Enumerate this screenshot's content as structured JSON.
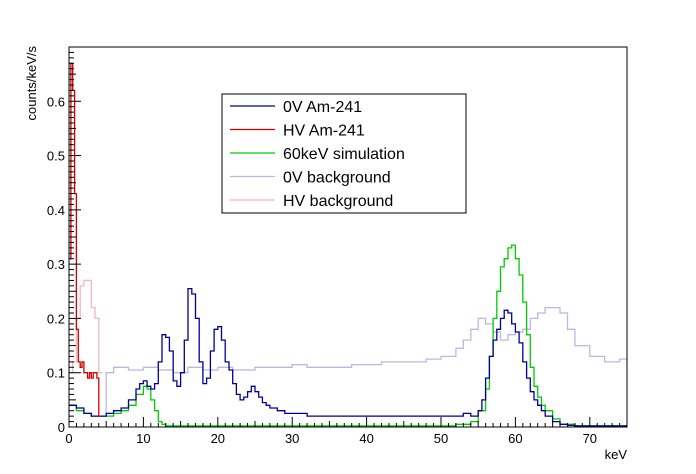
{
  "chart_data": {
    "type": "line",
    "title": "",
    "xlabel": "keV",
    "ylabel": "counts/keV/s",
    "xlim": [
      0,
      75
    ],
    "ylim": [
      0,
      0.7
    ],
    "grid": false,
    "legend_position": "top-center",
    "x_ticks": [
      0,
      10,
      20,
      30,
      40,
      50,
      60,
      70
    ],
    "y_ticks": [
      0,
      0.1,
      0.2,
      0.3,
      0.4,
      0.5,
      0.6
    ],
    "series": [
      {
        "name": "0V Am-241",
        "color": "#000099",
        "x": [
          0,
          1,
          2,
          3,
          4,
          5,
          6,
          7,
          8,
          9,
          9.5,
          10,
          10.5,
          11,
          11.5,
          12,
          12.5,
          13,
          13.5,
          14,
          14.5,
          15,
          15.5,
          16,
          16.5,
          17,
          17.5,
          18,
          18.5,
          19,
          19.5,
          20,
          20.5,
          21,
          21.5,
          22,
          22.5,
          23,
          23.5,
          24,
          24.5,
          25,
          25.5,
          26,
          26.5,
          27,
          28,
          29,
          30,
          32,
          34,
          36,
          38,
          40,
          42,
          44,
          46,
          48,
          50,
          52,
          53,
          54,
          55,
          55.5,
          56,
          56.5,
          57,
          57.5,
          58,
          58.5,
          59,
          59.5,
          60,
          60.5,
          61,
          61.5,
          62,
          62.5,
          63,
          63.5,
          64,
          65,
          66,
          67,
          68,
          70,
          72,
          75
        ],
        "values": [
          0.04,
          0.035,
          0.025,
          0.02,
          0.02,
          0.025,
          0.03,
          0.035,
          0.05,
          0.07,
          0.08,
          0.085,
          0.075,
          0.07,
          0.08,
          0.12,
          0.17,
          0.165,
          0.14,
          0.085,
          0.075,
          0.1,
          0.16,
          0.255,
          0.245,
          0.2,
          0.12,
          0.08,
          0.09,
          0.14,
          0.18,
          0.185,
          0.16,
          0.12,
          0.105,
          0.08,
          0.06,
          0.05,
          0.055,
          0.065,
          0.075,
          0.065,
          0.055,
          0.045,
          0.04,
          0.035,
          0.03,
          0.025,
          0.025,
          0.02,
          0.02,
          0.02,
          0.02,
          0.02,
          0.02,
          0.02,
          0.02,
          0.02,
          0.02,
          0.02,
          0.025,
          0.02,
          0.03,
          0.05,
          0.09,
          0.13,
          0.16,
          0.18,
          0.2,
          0.215,
          0.21,
          0.19,
          0.175,
          0.155,
          0.12,
          0.09,
          0.065,
          0.05,
          0.04,
          0.03,
          0.02,
          0.01,
          0.005,
          0.003,
          0.002,
          0.002,
          0.002,
          0.002
        ]
      },
      {
        "name": "HV Am-241",
        "color": "#cc0000",
        "x": [
          0,
          0.25,
          0.5,
          0.75,
          1,
          1.25,
          1.5,
          1.75,
          2,
          2.25,
          2.5,
          2.75,
          3,
          3.25,
          3.5,
          3.75,
          4
        ],
        "values": [
          0.31,
          0.67,
          0.62,
          0.43,
          0.18,
          0.12,
          0.11,
          0.12,
          0.1,
          0.1,
          0.09,
          0.1,
          0.09,
          0.1,
          0.1,
          0.09,
          0.02
        ]
      },
      {
        "name": "60keV simulation",
        "color": "#00cc00",
        "x": [
          0,
          1,
          2,
          3,
          4,
          5,
          6,
          7,
          8,
          9,
          10,
          10.5,
          11,
          11.5,
          12,
          12.5,
          13,
          14,
          15,
          20,
          30,
          40,
          50,
          52,
          54,
          55,
          56,
          56.5,
          57,
          57.5,
          58,
          58.5,
          59,
          59.5,
          60,
          60.5,
          61,
          61.5,
          62,
          62.5,
          63,
          63.5,
          64,
          65,
          66,
          68,
          70,
          75
        ],
        "values": [
          0.04,
          0.03,
          0.025,
          0.02,
          0.02,
          0.02,
          0.025,
          0.03,
          0.04,
          0.06,
          0.075,
          0.07,
          0.05,
          0.03,
          0.01,
          0.005,
          0.002,
          0.002,
          0.002,
          0.002,
          0.002,
          0.002,
          0.002,
          0.005,
          0.01,
          0.03,
          0.07,
          0.13,
          0.2,
          0.25,
          0.295,
          0.31,
          0.33,
          0.335,
          0.31,
          0.28,
          0.23,
          0.17,
          0.11,
          0.075,
          0.055,
          0.04,
          0.03,
          0.015,
          0.005,
          0.002,
          0.002,
          0.002
        ]
      },
      {
        "name": "0V background",
        "color": "#b8b8e8",
        "x": [
          4,
          5,
          6,
          8,
          10,
          12,
          14,
          16,
          18,
          20,
          22,
          25,
          28,
          30,
          32,
          35,
          38,
          40,
          42,
          45,
          48,
          50,
          52,
          53,
          54,
          55,
          56,
          57,
          58,
          59,
          60,
          61,
          62,
          63,
          64,
          65,
          66,
          67,
          68,
          70,
          72,
          74,
          75
        ],
        "values": [
          0.02,
          0.1,
          0.11,
          0.105,
          0.11,
          0.105,
          0.1,
          0.11,
          0.105,
          0.11,
          0.105,
          0.11,
          0.11,
          0.115,
          0.11,
          0.11,
          0.115,
          0.115,
          0.12,
          0.12,
          0.125,
          0.13,
          0.145,
          0.16,
          0.18,
          0.2,
          0.19,
          0.175,
          0.16,
          0.17,
          0.175,
          0.18,
          0.2,
          0.21,
          0.22,
          0.22,
          0.21,
          0.18,
          0.15,
          0.13,
          0.12,
          0.125,
          0.12
        ]
      },
      {
        "name": "HV background",
        "color": "#f0b8b8",
        "x": [
          0,
          0.5,
          1,
          1.5,
          2,
          2.5,
          3,
          3.5,
          4
        ],
        "values": [
          0.1,
          0.12,
          0.2,
          0.26,
          0.27,
          0.27,
          0.22,
          0.2,
          0.1
        ]
      }
    ]
  }
}
